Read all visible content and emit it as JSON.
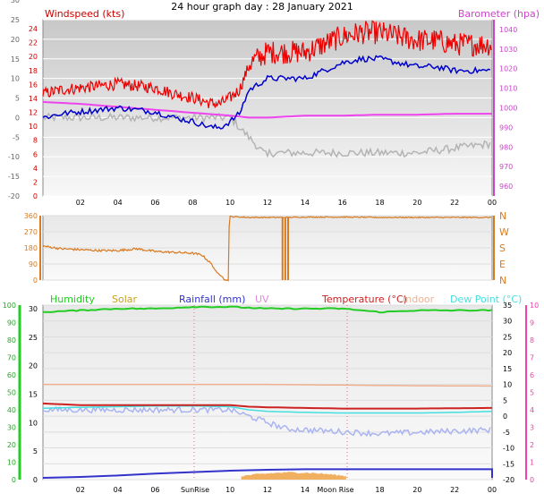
{
  "title": "24 hour graph day : 28 January 2021",
  "colors": {
    "wind": "#ee0000",
    "gust_line": "#0000cc",
    "baro": "#ee44ee",
    "grey": "#b4b4b4",
    "dir": "#d87a20",
    "humidity": "#22cc22",
    "solar": "#c8a020",
    "rain": "#3333cc",
    "uv": "#e088e0",
    "temp": "#cc2222",
    "indoor": "#f0b090",
    "dew": "#44e0e0",
    "dewlight": "#aab4f0",
    "green_axis": "#22cc22",
    "pink_axis": "#ee44aa"
  },
  "x_ticks": [
    "02",
    "04",
    "06",
    "08",
    "10",
    "12",
    "14",
    "16",
    "18",
    "20",
    "22",
    "00"
  ],
  "markers": {
    "sunrise": "SunRise",
    "moonrise": "Moon Rise"
  },
  "chart_data": [
    {
      "type": "line",
      "title": "",
      "left_label": "Windspeed (kts)",
      "right_label": "Barometer (hpa)",
      "ylim_left": [
        -20,
        25
      ],
      "left_ticks_outer": [
        "30",
        "25",
        "20",
        "15",
        "10",
        "5",
        "0",
        "-5",
        "-10",
        "-15",
        "-20"
      ],
      "left_ticks_inner": [
        "24",
        "22",
        "20",
        "18",
        "16",
        "14",
        "12",
        "10",
        "8",
        "6",
        "4",
        "2",
        "0"
      ],
      "right_ticks": [
        "1040",
        "1030",
        "1020",
        "1010",
        "1000",
        "990",
        "980",
        "970",
        "960"
      ],
      "series": [
        {
          "name": "Windspeed (kts)",
          "x": [
            0,
            1,
            2,
            3,
            4,
            5,
            6,
            7,
            8,
            9,
            9.5,
            10,
            10.5,
            11,
            12,
            13,
            14,
            15,
            16,
            17,
            18,
            19,
            20,
            21,
            22,
            23,
            24
          ],
          "values": [
            3,
            4,
            4.5,
            5,
            5.5,
            5,
            4.5,
            3,
            2,
            0.5,
            0.5,
            2,
            4,
            10,
            13,
            13,
            13,
            15,
            17,
            18,
            18,
            17,
            16,
            16,
            15,
            15,
            15
          ]
        },
        {
          "name": "Barometer (hpa)",
          "x": [
            0,
            2,
            4,
            6,
            8,
            10,
            11,
            12,
            14,
            16,
            18,
            20,
            22,
            23,
            24
          ],
          "values": [
            1003,
            1002,
            1000.5,
            999,
            997.5,
            996,
            995,
            995,
            996,
            996,
            996.5,
            996.5,
            997,
            997,
            997
          ]
        }
      ]
    },
    {
      "type": "line",
      "title": "",
      "left_ticks": [
        "360",
        "270",
        "180",
        "90",
        "0"
      ],
      "right_ticks": [
        "N",
        "W",
        "S",
        "E",
        "N"
      ],
      "ylim": [
        0,
        360
      ],
      "series": [
        {
          "name": "",
          "x": [
            0,
            1,
            2,
            3,
            4,
            5,
            6,
            7,
            8,
            8.5,
            9,
            9.3,
            9.6,
            9.7,
            10,
            11,
            12,
            13,
            14,
            16,
            18,
            20,
            22,
            24
          ],
          "values": [
            190,
            175,
            170,
            165,
            165,
            175,
            160,
            155,
            150,
            140,
            90,
            40,
            20,
            0,
            355,
            350,
            350,
            350,
            352,
            352,
            350,
            350,
            350,
            350
          ]
        }
      ]
    },
    {
      "type": "line",
      "title": "",
      "legend": [
        "Humidity",
        "Solar",
        "Rainfall (mm)",
        "UV",
        "Temperature (°C)",
        "Indoor",
        "Dew Point (°C)"
      ],
      "left_ticks_outer": [
        "100",
        "90",
        "80",
        "70",
        "60",
        "50",
        "40",
        "30",
        "20",
        "10",
        "0"
      ],
      "left_ticks_inner": [
        "30",
        "25",
        "20",
        "15",
        "10",
        "5",
        "0"
      ],
      "right_ticks_inner": [
        "35",
        "30",
        "25",
        "20",
        "15",
        "10",
        "5",
        "0",
        "-5",
        "-10",
        "-15",
        "-20"
      ],
      "right_ticks_outer": [
        "10",
        "9",
        "8",
        "7",
        "6",
        "5",
        "4",
        "3",
        "2",
        "1",
        "0"
      ],
      "ylim": [
        -20,
        35
      ],
      "series": [
        {
          "name": "Humidity",
          "x": [
            0,
            2,
            4,
            6,
            8,
            10,
            12,
            14,
            16,
            18,
            20,
            22,
            24
          ],
          "values": [
            96,
            97,
            98,
            98,
            99,
            99,
            98,
            98,
            98,
            96,
            97,
            97,
            97
          ]
        },
        {
          "name": "Temperature (°C)",
          "x": [
            0,
            2,
            4,
            6,
            8,
            10,
            11,
            12,
            14,
            16,
            18,
            20,
            22,
            24
          ],
          "values": [
            4,
            3.5,
            3.5,
            3.5,
            3.5,
            3.5,
            3,
            2.8,
            2.6,
            2.4,
            2.4,
            2.4,
            2.5,
            2.6
          ]
        },
        {
          "name": "Dew Point (°C)",
          "x": [
            0,
            2,
            4,
            6,
            8,
            10,
            11,
            12,
            14,
            16,
            18,
            20,
            22,
            24
          ],
          "values": [
            2.5,
            2.8,
            3,
            3.2,
            3.2,
            3,
            2,
            1.5,
            1.2,
            1,
            1,
            1,
            1.2,
            1.5
          ]
        },
        {
          "name": "Indoor",
          "x": [
            0,
            4,
            8,
            12,
            16,
            20,
            24
          ],
          "values": [
            8,
            8,
            8,
            8,
            7.8,
            7.6,
            7.5
          ]
        }
      ]
    }
  ]
}
